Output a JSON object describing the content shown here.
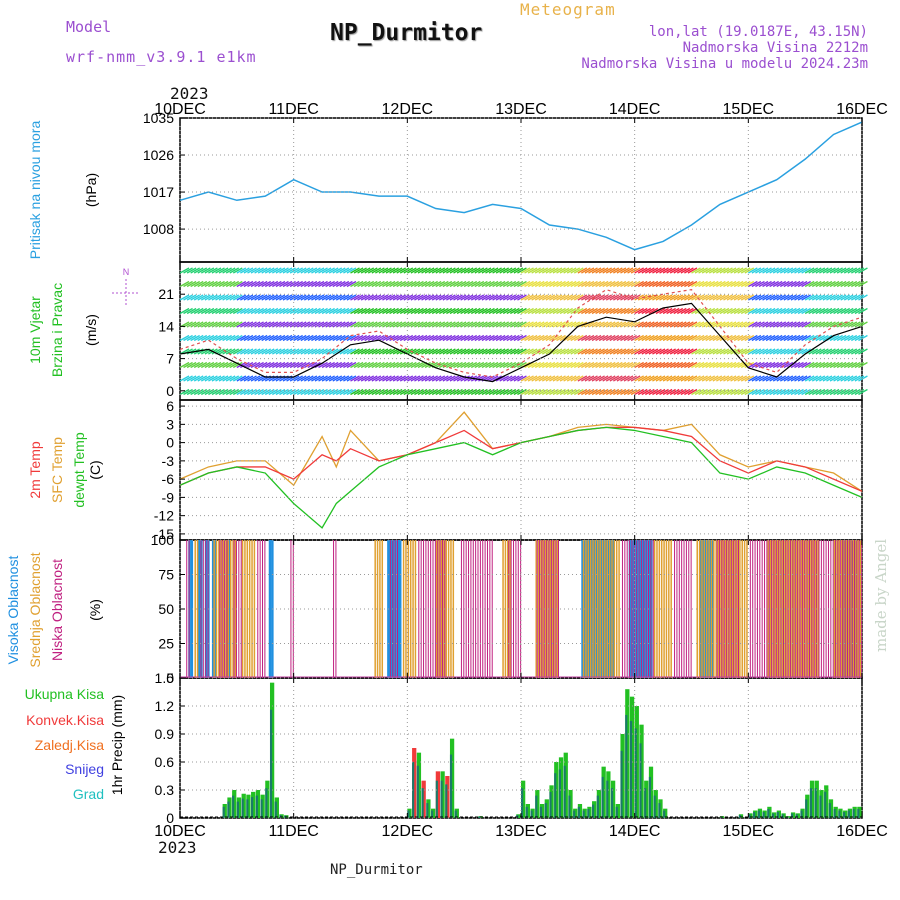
{
  "header": {
    "model_label": "Model",
    "model_version": "wrf-nmm_v3.9.1 e1km",
    "station": "NP_Durmitor",
    "product": "Meteogram",
    "lonlat": "lon,lat (19.0187E, 43.15N)",
    "elevation": "Nadmorska Visina 2212m",
    "elevation_model": "Nadmorska Visina u modelu 2024.23m",
    "year": "2023",
    "footer_station": "NP_Durmitor",
    "credit": "made by Angel"
  },
  "colors": {
    "pressure": "#2aa0e0",
    "temp2m": "#f03a3a",
    "sfctemp": "#e0a030",
    "dewpt": "#22c022",
    "high_cloud": "#2090e0",
    "mid_cloud": "#e0a030",
    "low_cloud": "#c02080",
    "total_precip": "#22c022",
    "conv_precip": "#f03a3a",
    "frz_precip": "#f07020",
    "snow": "#4040e0",
    "graupel": "#20c0c0"
  },
  "chart_data": [
    {
      "type": "line",
      "id": "pressure",
      "ylabel": "(hPa)",
      "series_label": "Pritisak na nivou mora",
      "ylim": [
        1000,
        1035
      ],
      "yticks": [
        1008,
        1017,
        1026,
        1035
      ],
      "x": [
        0,
        6,
        12,
        18,
        24,
        30,
        36,
        42,
        48,
        54,
        60,
        66,
        72,
        78,
        84,
        90,
        96,
        102,
        108,
        114,
        120,
        126,
        132,
        138,
        144
      ],
      "series": [
        {
          "values": [
            1015,
            1017,
            1015,
            1016,
            1020,
            1017,
            1017,
            1016,
            1016,
            1013,
            1012,
            1014,
            1013,
            1009,
            1008,
            1006,
            1003,
            1005,
            1009,
            1014,
            1017,
            1020,
            1025,
            1031,
            1034
          ]
        }
      ]
    },
    {
      "type": "line",
      "id": "wind",
      "ylabel": "(m/s)",
      "series_label": "10m Vjetar Brzina i Pravac",
      "direction_label": "N",
      "ylim": [
        -2,
        28
      ],
      "yticks": [
        0,
        7,
        14,
        21
      ],
      "x": [
        0,
        6,
        12,
        18,
        24,
        30,
        36,
        42,
        48,
        54,
        60,
        66,
        72,
        78,
        84,
        90,
        96,
        102,
        108,
        114,
        120,
        126,
        132,
        138,
        144
      ],
      "series": [
        {
          "values": [
            8,
            9,
            6,
            3,
            3,
            6,
            10,
            11,
            8,
            5,
            3,
            2,
            5,
            8,
            14,
            16,
            15,
            18,
            19,
            12,
            5,
            3,
            8,
            12,
            14
          ]
        },
        {
          "values": [
            9,
            11,
            7,
            4,
            4,
            7,
            12,
            13,
            9,
            6,
            4,
            3,
            6,
            10,
            18,
            22,
            20,
            21,
            22,
            14,
            6,
            4,
            10,
            14,
            16
          ]
        }
      ],
      "barbs": [
        {
          "x0": 0,
          "x1": 12,
          "s": 10
        },
        {
          "x0": 12,
          "x1": 36,
          "s": 5
        },
        {
          "x0": 36,
          "x1": 48,
          "s": 6
        },
        {
          "x0": 48,
          "x1": 60,
          "s": 7
        },
        {
          "x0": 60,
          "x1": 72,
          "s": 6
        },
        {
          "x0": 72,
          "x1": 84,
          "s": 15
        },
        {
          "x0": 84,
          "x1": 96,
          "s": 20
        },
        {
          "x0": 96,
          "x1": 108,
          "s": 24
        },
        {
          "x0": 108,
          "x1": 120,
          "s": 15
        },
        {
          "x0": 120,
          "x1": 132,
          "s": 5
        },
        {
          "x0": 132,
          "x1": 144,
          "s": 12
        }
      ]
    },
    {
      "type": "line",
      "id": "temperature",
      "ylabel": "(C)",
      "series_labels": [
        "2m Temp",
        "SFC Temp",
        "dewpt Temp"
      ],
      "ylim": [
        -16,
        7
      ],
      "yticks": [
        -15,
        -12,
        -9,
        -6,
        -3,
        0,
        3,
        6
      ],
      "x": [
        0,
        6,
        12,
        18,
        24,
        30,
        33,
        36,
        42,
        48,
        54,
        60,
        66,
        72,
        78,
        84,
        90,
        96,
        102,
        108,
        114,
        120,
        126,
        132,
        138,
        144
      ],
      "series": [
        {
          "name": "2m Temp",
          "values": [
            -7,
            -5,
            -4,
            -4,
            -6,
            -2,
            -3,
            -1,
            -3,
            -2,
            0,
            2,
            -1,
            0,
            1,
            2,
            2.5,
            2.5,
            2,
            1,
            -3,
            -5,
            -3,
            -4,
            -6,
            -8
          ]
        },
        {
          "name": "SFC Temp",
          "values": [
            -6,
            -4,
            -3,
            -3,
            -7,
            1,
            -4,
            2,
            -3,
            -2,
            0,
            5,
            -1,
            0,
            1,
            2.5,
            3,
            2.5,
            2,
            3,
            -2,
            -4,
            -3,
            -4,
            -5,
            -8
          ]
        },
        {
          "name": "dewpt Temp",
          "values": [
            -7,
            -5,
            -4,
            -5,
            -10,
            -14,
            -10,
            -8,
            -4,
            -2,
            -1,
            0,
            -2,
            0,
            1,
            2,
            2.5,
            2,
            1,
            0,
            -5,
            -6,
            -4,
            -5,
            -7,
            -9
          ]
        }
      ]
    },
    {
      "type": "bar",
      "id": "clouds",
      "ylabel": "(%)",
      "series_labels": [
        "Visoka Oblacnost",
        "Srednja Oblacnost",
        "Niska Oblacnost"
      ],
      "ylim": [
        0,
        100
      ],
      "yticks": [
        0,
        25,
        50,
        75,
        100
      ],
      "high_intervals": [
        [
          2,
          3
        ],
        [
          4,
          5
        ],
        [
          5.5,
          6.5
        ],
        [
          7,
          8
        ],
        [
          10,
          11
        ],
        [
          19,
          20
        ],
        [
          44,
          47
        ],
        [
          85,
          92
        ],
        [
          95,
          100
        ],
        [
          110,
          113
        ],
        [
          140,
          143
        ]
      ],
      "mid_intervals": [
        [
          3,
          4
        ],
        [
          7,
          9
        ],
        [
          9,
          12
        ],
        [
          13,
          16
        ],
        [
          41,
          43
        ],
        [
          47,
          50
        ],
        [
          54,
          58
        ],
        [
          68,
          70
        ],
        [
          75,
          80
        ],
        [
          85,
          93
        ],
        [
          100,
          104
        ],
        [
          109,
          120
        ],
        [
          124,
          135
        ],
        [
          138,
          144
        ]
      ],
      "low_intervals": [
        [
          1,
          2
        ],
        [
          4,
          6
        ],
        [
          8,
          10
        ],
        [
          11,
          13
        ],
        [
          16,
          18
        ],
        [
          23,
          24
        ],
        [
          32,
          33
        ],
        [
          44,
          46
        ],
        [
          50,
          56
        ],
        [
          59,
          63
        ],
        [
          63,
          66
        ],
        [
          69,
          72
        ],
        [
          75,
          80
        ],
        [
          93,
          100
        ],
        [
          104,
          108
        ],
        [
          113,
          118
        ],
        [
          120,
          132
        ],
        [
          132,
          144
        ]
      ]
    },
    {
      "type": "bar",
      "id": "precip",
      "ylabel": "1hr Precip (mm)",
      "series_labels": [
        "Ukupna Kisa",
        "Konvek.Kisa",
        "Zaledj.Kisa",
        "Snijeg",
        "Grad"
      ],
      "ylim": [
        0,
        1.5
      ],
      "yticks": [
        0,
        0.3,
        0.6,
        0.9,
        1.2,
        1.5
      ],
      "bars": [
        [
          9,
          0.15,
          "g"
        ],
        [
          10,
          0.22,
          "g"
        ],
        [
          11,
          0.3,
          "g"
        ],
        [
          12,
          0.22,
          "g"
        ],
        [
          13,
          0.26,
          "g"
        ],
        [
          14,
          0.25,
          "g"
        ],
        [
          15,
          0.28,
          "g"
        ],
        [
          16,
          0.3,
          "g"
        ],
        [
          17,
          0.25,
          "g"
        ],
        [
          18,
          0.4,
          "g"
        ],
        [
          19,
          1.45,
          "g"
        ],
        [
          20,
          0.22,
          "g"
        ],
        [
          21,
          0.04,
          "g"
        ],
        [
          22,
          0.03,
          "g"
        ],
        [
          48,
          0.1,
          "g"
        ],
        [
          49,
          0.75,
          "r"
        ],
        [
          50,
          0.7,
          "g"
        ],
        [
          51,
          0.4,
          "r"
        ],
        [
          52,
          0.2,
          "g"
        ],
        [
          53,
          0.1,
          "g"
        ],
        [
          54,
          0.5,
          "r"
        ],
        [
          55,
          0.5,
          "g"
        ],
        [
          56,
          0.45,
          "r"
        ],
        [
          57,
          0.85,
          "g"
        ],
        [
          58,
          0.1,
          "g"
        ],
        [
          63,
          0.02,
          "g"
        ],
        [
          71,
          0.04,
          "g"
        ],
        [
          72,
          0.4,
          "g"
        ],
        [
          73,
          0.15,
          "g"
        ],
        [
          74,
          0.1,
          "g"
        ],
        [
          75,
          0.3,
          "g"
        ],
        [
          76,
          0.15,
          "g"
        ],
        [
          77,
          0.2,
          "g"
        ],
        [
          78,
          0.35,
          "g"
        ],
        [
          79,
          0.6,
          "g"
        ],
        [
          80,
          0.65,
          "g"
        ],
        [
          81,
          0.7,
          "g"
        ],
        [
          82,
          0.3,
          "g"
        ],
        [
          83,
          0.1,
          "g"
        ],
        [
          84,
          0.15,
          "g"
        ],
        [
          85,
          0.1,
          "g"
        ],
        [
          86,
          0.12,
          "g"
        ],
        [
          87,
          0.18,
          "g"
        ],
        [
          88,
          0.3,
          "g"
        ],
        [
          89,
          0.55,
          "g"
        ],
        [
          90,
          0.5,
          "g"
        ],
        [
          91,
          0.4,
          "g"
        ],
        [
          92,
          0.15,
          "g"
        ],
        [
          93,
          0.9,
          "g"
        ],
        [
          94,
          1.38,
          "g"
        ],
        [
          95,
          1.3,
          "g"
        ],
        [
          96,
          1.2,
          "g"
        ],
        [
          97,
          1.0,
          "g"
        ],
        [
          98,
          0.4,
          "g"
        ],
        [
          99,
          0.55,
          "g"
        ],
        [
          100,
          0.3,
          "g"
        ],
        [
          101,
          0.2,
          "g"
        ],
        [
          102,
          0.1,
          "g"
        ],
        [
          114,
          0.02,
          "g"
        ],
        [
          118,
          0.04,
          "g"
        ],
        [
          120,
          0.05,
          "g"
        ],
        [
          121,
          0.08,
          "g"
        ],
        [
          122,
          0.1,
          "g"
        ],
        [
          123,
          0.08,
          "g"
        ],
        [
          124,
          0.12,
          "g"
        ],
        [
          125,
          0.06,
          "g"
        ],
        [
          126,
          0.08,
          "g"
        ],
        [
          127,
          0.05,
          "g"
        ],
        [
          128,
          0.02,
          "g"
        ],
        [
          129,
          0.06,
          "g"
        ],
        [
          130,
          0.05,
          "g"
        ],
        [
          131,
          0.1,
          "g"
        ],
        [
          132,
          0.25,
          "g"
        ],
        [
          133,
          0.4,
          "g"
        ],
        [
          134,
          0.4,
          "g"
        ],
        [
          135,
          0.3,
          "g"
        ],
        [
          136,
          0.35,
          "g"
        ],
        [
          137,
          0.2,
          "g"
        ],
        [
          138,
          0.12,
          "g"
        ],
        [
          139,
          0.1,
          "g"
        ],
        [
          140,
          0.08,
          "g"
        ],
        [
          141,
          0.1,
          "g"
        ],
        [
          142,
          0.12,
          "g"
        ],
        [
          143,
          0.12,
          "g"
        ]
      ]
    }
  ],
  "time_axis": {
    "start": "2023-12-10T00:00",
    "end": "2023-12-16T00:00",
    "tick_labels": [
      "10DEC",
      "11DEC",
      "12DEC",
      "13DEC",
      "14DEC",
      "15DEC",
      "16DEC"
    ]
  }
}
